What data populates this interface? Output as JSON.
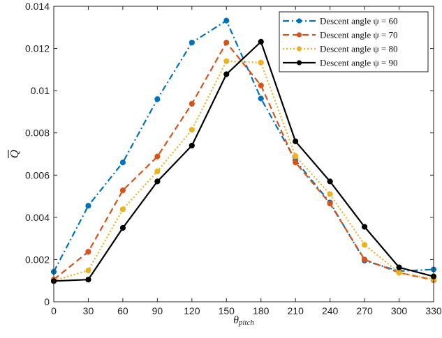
{
  "chart_data": {
    "type": "line",
    "xlabel_main": "θ",
    "xlabel_sub": "pitch",
    "ylabel": "Q",
    "x": [
      0,
      30,
      60,
      90,
      120,
      150,
      180,
      210,
      240,
      270,
      300,
      330
    ],
    "xticks": [
      "0",
      "30",
      "60",
      "90",
      "120",
      "150",
      "180",
      "210",
      "240",
      "270",
      "300",
      "330"
    ],
    "yticks": [
      "0",
      "0.002",
      "0.004",
      "0.006",
      "0.008",
      "0.01",
      "0.012",
      "0.014"
    ],
    "xlim": [
      0,
      330
    ],
    "ylim": [
      0,
      0.014
    ],
    "grid": false,
    "legend_position": "top-right",
    "series": [
      {
        "name": "Descent angle ψ = 60",
        "color": "#0072BD",
        "style": "dashdot",
        "values": [
          0.00142,
          0.00455,
          0.0066,
          0.0096,
          0.01228,
          0.01332,
          0.00963,
          0.0067,
          0.0047,
          0.00195,
          0.00145,
          0.00153
        ]
      },
      {
        "name": "Descent angle ψ = 70",
        "color": "#D95319",
        "style": "dashed",
        "values": [
          0.00105,
          0.00237,
          0.00528,
          0.00688,
          0.00938,
          0.01228,
          0.01025,
          0.0066,
          0.00465,
          0.002,
          0.00138,
          0.00103
        ]
      },
      {
        "name": "Descent angle ψ = 80",
        "color": "#EDB120",
        "style": "dotted",
        "values": [
          0.001,
          0.00148,
          0.00438,
          0.00618,
          0.00815,
          0.0114,
          0.01133,
          0.0069,
          0.0051,
          0.0027,
          0.00138,
          0.00108
        ]
      },
      {
        "name": "Descent angle ψ = 90",
        "color": "#000000",
        "style": "solid",
        "values": [
          0.00098,
          0.00105,
          0.0035,
          0.0057,
          0.0074,
          0.01078,
          0.01232,
          0.0076,
          0.0057,
          0.00355,
          0.00163,
          0.0012
        ]
      }
    ]
  }
}
